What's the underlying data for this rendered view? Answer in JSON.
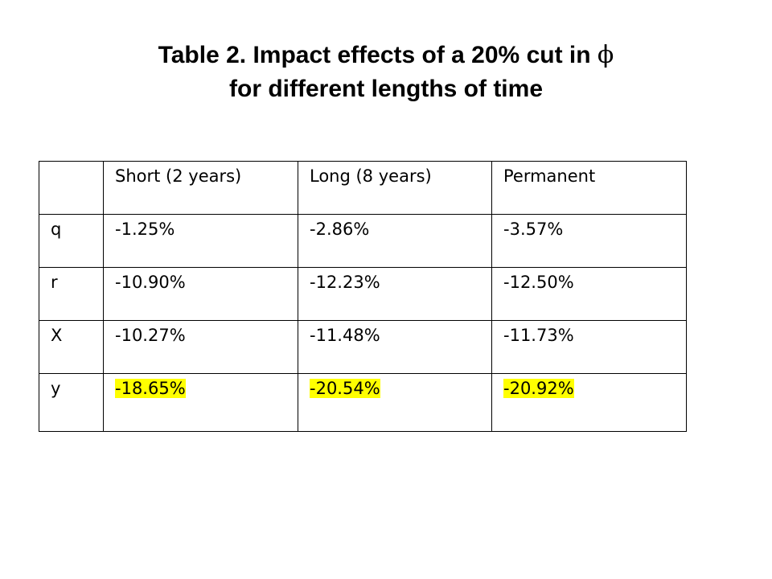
{
  "slide": {
    "title_line1": "Table 2. Impact effects of a 20% cut in",
    "title_symbol": "ϕ",
    "title_line2": "for different lengths of time"
  },
  "table": {
    "headers": [
      "",
      "Short (2 years)",
      "Long (8 years)",
      "Permanent"
    ],
    "rows": [
      {
        "label": "q",
        "values": [
          "-1.25%",
          "-2.86%",
          "-3.57%"
        ],
        "highlighted": false
      },
      {
        "label": "r",
        "values": [
          "-10.90%",
          "-12.23%",
          "-12.50%"
        ],
        "highlighted": false
      },
      {
        "label": "X",
        "values": [
          "-10.27%",
          "-11.48%",
          "-11.73%"
        ],
        "highlighted": false
      },
      {
        "label": "y",
        "values": [
          "-18.65%",
          "-20.54%",
          "-20.92%"
        ],
        "highlighted": true
      }
    ],
    "highlight_color": "#ffff00"
  }
}
